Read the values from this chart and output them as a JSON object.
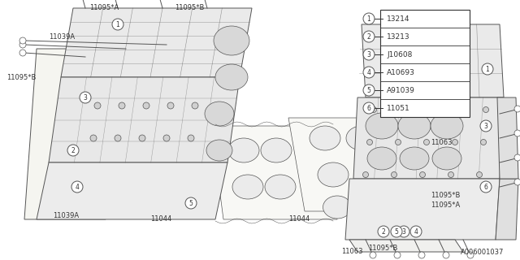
{
  "background_color": "#ffffff",
  "line_color": "#555555",
  "dark_line": "#333333",
  "legend_items": [
    {
      "num": "1",
      "code": "13214"
    },
    {
      "num": "2",
      "code": "13213"
    },
    {
      "num": "3",
      "code": "J10608"
    },
    {
      "num": "4",
      "code": "A10693"
    },
    {
      "num": "5",
      "code": "A91039"
    },
    {
      "num": "6",
      "code": "11051"
    }
  ],
  "footer_text": "A006001037"
}
